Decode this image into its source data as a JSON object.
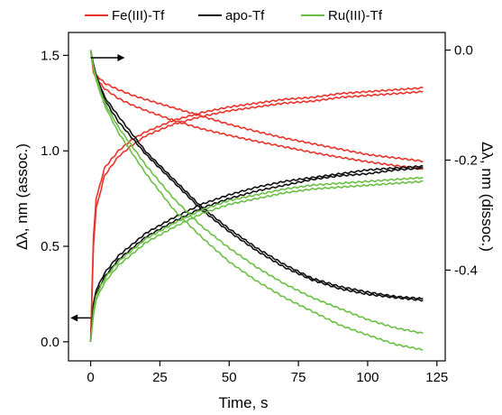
{
  "chart_data": {
    "type": "line",
    "xlabel": "Time, s",
    "ylabel_left": "Δλ, nm (assoc.)",
    "ylabel_right": "Δλ, nm (dissoc.)",
    "xlim": [
      -8,
      128
    ],
    "ylim_left": [
      -0.1,
      1.62
    ],
    "ylim_right": [
      -0.565,
      0.032
    ],
    "xticks": [
      0,
      25,
      50,
      75,
      100,
      125
    ],
    "yticks_left": [
      0.0,
      0.5,
      1.0,
      1.5
    ],
    "yticks_left_labels": [
      "0.0",
      "0.5",
      "1.0",
      "1.5"
    ],
    "yticks_right": [
      0.0,
      -0.2,
      -0.4
    ],
    "yticks_right_labels": [
      "0.0",
      "-0.2",
      "-0.4"
    ],
    "grid": false,
    "legend": {
      "placement": "top",
      "entries": [
        "Fe(III)-Tf",
        "apo-Tf",
        "Ru(III)-Tf"
      ]
    },
    "annotations": [
      {
        "type": "arrow",
        "direction": "right",
        "axis": "right",
        "meaning": "dissociation curves use right axis"
      },
      {
        "type": "arrow",
        "direction": "left",
        "axis": "left",
        "meaning": "association curves use left axis"
      }
    ],
    "series": [
      {
        "name": "Fe(III)-Tf",
        "color": "#e8332b",
        "phase": "association",
        "axis": "left",
        "x": [
          0,
          1,
          2,
          5,
          10,
          15,
          20,
          30,
          40,
          50,
          60,
          70,
          80,
          90,
          100,
          110,
          120
        ],
        "values": [
          0.0,
          0.55,
          0.75,
          0.91,
          1.0,
          1.06,
          1.1,
          1.16,
          1.2,
          1.23,
          1.25,
          1.27,
          1.28,
          1.3,
          1.31,
          1.32,
          1.33
        ]
      },
      {
        "name": "Fe(III)-Tf",
        "color": "#e8332b",
        "phase": "association",
        "axis": "left",
        "x": [
          0,
          1,
          2,
          5,
          10,
          15,
          20,
          30,
          40,
          50,
          60,
          70,
          80,
          90,
          100,
          110,
          120
        ],
        "values": [
          0.0,
          0.5,
          0.7,
          0.87,
          0.97,
          1.03,
          1.08,
          1.14,
          1.18,
          1.21,
          1.23,
          1.25,
          1.26,
          1.28,
          1.29,
          1.3,
          1.31
        ]
      },
      {
        "name": "Fe(III)-Tf",
        "color": "#e8332b",
        "phase": "dissociation",
        "axis": "right",
        "x": [
          0,
          1,
          2,
          5,
          10,
          15,
          20,
          30,
          40,
          50,
          60,
          70,
          80,
          90,
          100,
          110,
          120
        ],
        "values": [
          0.0,
          -0.035,
          -0.045,
          -0.06,
          -0.072,
          -0.082,
          -0.09,
          -0.105,
          -0.12,
          -0.135,
          -0.148,
          -0.16,
          -0.17,
          -0.18,
          -0.19,
          -0.196,
          -0.202
        ]
      },
      {
        "name": "Fe(III)-Tf",
        "color": "#e8332b",
        "phase": "dissociation",
        "axis": "right",
        "x": [
          0,
          1,
          2,
          5,
          10,
          15,
          20,
          30,
          40,
          50,
          60,
          70,
          80,
          90,
          100,
          110,
          120
        ],
        "values": [
          0.0,
          -0.04,
          -0.052,
          -0.07,
          -0.088,
          -0.1,
          -0.11,
          -0.128,
          -0.143,
          -0.155,
          -0.166,
          -0.176,
          -0.186,
          -0.195,
          -0.203,
          -0.21,
          -0.216
        ]
      },
      {
        "name": "apo-Tf",
        "color": "#111111",
        "phase": "association",
        "axis": "left",
        "x": [
          0,
          1,
          2,
          5,
          10,
          20,
          30,
          40,
          50,
          60,
          70,
          80,
          90,
          100,
          110,
          120
        ],
        "values": [
          0.0,
          0.2,
          0.27,
          0.36,
          0.45,
          0.57,
          0.65,
          0.72,
          0.77,
          0.81,
          0.84,
          0.86,
          0.88,
          0.9,
          0.91,
          0.92
        ]
      },
      {
        "name": "apo-Tf",
        "color": "#111111",
        "phase": "association",
        "axis": "left",
        "x": [
          0,
          1,
          2,
          5,
          10,
          20,
          30,
          40,
          50,
          60,
          70,
          80,
          90,
          100,
          110,
          120
        ],
        "values": [
          0.0,
          0.18,
          0.25,
          0.34,
          0.43,
          0.55,
          0.63,
          0.7,
          0.75,
          0.79,
          0.82,
          0.85,
          0.87,
          0.88,
          0.9,
          0.91
        ]
      },
      {
        "name": "apo-Tf",
        "color": "#111111",
        "phase": "dissociation",
        "axis": "right",
        "x": [
          0,
          1,
          2,
          5,
          10,
          20,
          30,
          40,
          50,
          60,
          70,
          80,
          90,
          100,
          110,
          120
        ],
        "values": [
          0.0,
          -0.025,
          -0.045,
          -0.085,
          -0.12,
          -0.185,
          -0.235,
          -0.285,
          -0.325,
          -0.36,
          -0.39,
          -0.415,
          -0.43,
          -0.44,
          -0.448,
          -0.452
        ]
      },
      {
        "name": "apo-Tf",
        "color": "#111111",
        "phase": "dissociation",
        "axis": "right",
        "x": [
          0,
          1,
          2,
          5,
          10,
          20,
          30,
          40,
          50,
          60,
          70,
          80,
          90,
          100,
          110,
          120
        ],
        "values": [
          0.0,
          -0.028,
          -0.05,
          -0.09,
          -0.13,
          -0.19,
          -0.24,
          -0.29,
          -0.33,
          -0.365,
          -0.395,
          -0.418,
          -0.434,
          -0.444,
          -0.45,
          -0.455
        ]
      },
      {
        "name": "Ru(III)-Tf",
        "color": "#6abf45",
        "phase": "association",
        "axis": "left",
        "x": [
          0,
          1,
          2,
          5,
          10,
          20,
          30,
          40,
          50,
          60,
          70,
          80,
          90,
          100,
          110,
          120
        ],
        "values": [
          0.0,
          0.16,
          0.24,
          0.33,
          0.42,
          0.54,
          0.62,
          0.69,
          0.74,
          0.77,
          0.8,
          0.82,
          0.83,
          0.84,
          0.85,
          0.86
        ]
      },
      {
        "name": "Ru(III)-Tf",
        "color": "#6abf45",
        "phase": "association",
        "axis": "left",
        "x": [
          0,
          1,
          2,
          5,
          10,
          20,
          30,
          40,
          50,
          60,
          70,
          80,
          90,
          100,
          110,
          120
        ],
        "values": [
          0.0,
          0.14,
          0.22,
          0.31,
          0.4,
          0.52,
          0.6,
          0.67,
          0.72,
          0.75,
          0.78,
          0.8,
          0.81,
          0.82,
          0.83,
          0.84
        ]
      },
      {
        "name": "Ru(III)-Tf",
        "color": "#6abf45",
        "phase": "dissociation",
        "axis": "right",
        "x": [
          0,
          1,
          2,
          5,
          10,
          20,
          30,
          40,
          50,
          60,
          70,
          80,
          90,
          100,
          110,
          120
        ],
        "values": [
          0.0,
          -0.03,
          -0.05,
          -0.095,
          -0.14,
          -0.21,
          -0.27,
          -0.32,
          -0.36,
          -0.395,
          -0.425,
          -0.45,
          -0.47,
          -0.49,
          -0.505,
          -0.515
        ]
      },
      {
        "name": "Ru(III)-Tf",
        "color": "#6abf45",
        "phase": "dissociation",
        "axis": "right",
        "x": [
          0,
          1,
          2,
          5,
          10,
          20,
          30,
          40,
          50,
          60,
          70,
          80,
          90,
          100,
          110,
          120
        ],
        "values": [
          0.0,
          -0.032,
          -0.055,
          -0.1,
          -0.15,
          -0.225,
          -0.29,
          -0.34,
          -0.385,
          -0.42,
          -0.45,
          -0.475,
          -0.5,
          -0.518,
          -0.535,
          -0.545
        ]
      }
    ]
  }
}
